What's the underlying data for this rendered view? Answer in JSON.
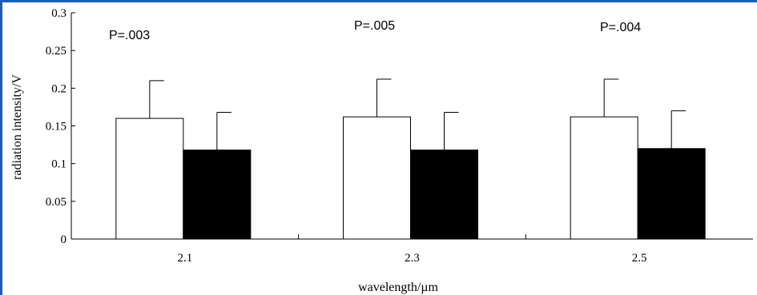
{
  "chart_data": {
    "type": "bar",
    "title": "",
    "xlabel": "wavelength/µm",
    "ylabel": "radiation intensity/V",
    "ylim": [
      0,
      0.3
    ],
    "yticks": [
      "0",
      "0.05",
      "0.1",
      "0.15",
      "0.2",
      "0.25",
      "0.3"
    ],
    "categories": [
      "2.1",
      "2.3",
      "2.5"
    ],
    "series": [
      {
        "fill": "#ffffff",
        "values": [
          0.16,
          0.162,
          0.162
        ],
        "errors": [
          0.05,
          0.05,
          0.05
        ]
      },
      {
        "fill": "#000000",
        "values": [
          0.118,
          0.118,
          0.12
        ],
        "errors": [
          0.05,
          0.05,
          0.05
        ]
      }
    ],
    "annotations": [
      "P=.003",
      "P=.005",
      "P=.004"
    ],
    "legend": "none",
    "grid": false
  },
  "colors": {
    "frame_border": "#1a5fb4",
    "bar_outline": "#000000"
  }
}
